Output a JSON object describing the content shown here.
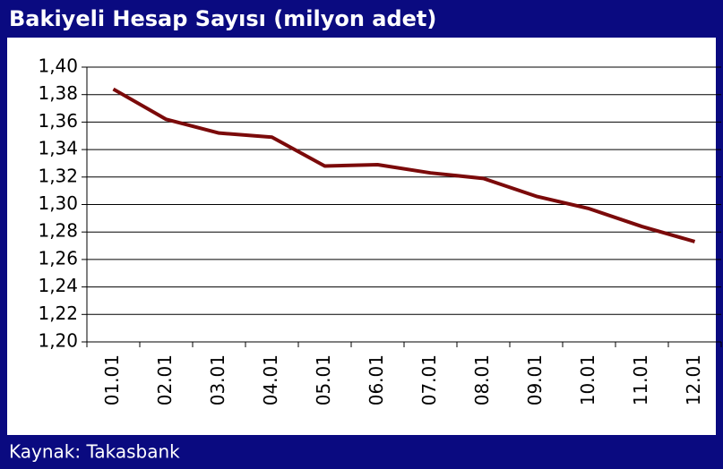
{
  "chart_data": {
    "type": "line",
    "title": "Bakiyeli Hesap Sayısı (milyon adet)",
    "source": "Kaynak: Takasbank",
    "categories": [
      "01.01",
      "02.01",
      "03.01",
      "04.01",
      "05.01",
      "06.01",
      "07.01",
      "08.01",
      "09.01",
      "10.01",
      "11.01",
      "12.01"
    ],
    "series": [
      {
        "name": "Bakiyeli Hesap Sayısı",
        "color": "#7b0a0a",
        "values": [
          1.384,
          1.362,
          1.352,
          1.349,
          1.328,
          1.329,
          1.323,
          1.319,
          1.306,
          1.297,
          1.284,
          1.273
        ]
      }
    ],
    "ylim": [
      1.2,
      1.4
    ],
    "yticks": [
      {
        "value": 1.2,
        "label": "1,20"
      },
      {
        "value": 1.22,
        "label": "1,22"
      },
      {
        "value": 1.24,
        "label": "1,24"
      },
      {
        "value": 1.26,
        "label": "1,26"
      },
      {
        "value": 1.28,
        "label": "1,28"
      },
      {
        "value": 1.3,
        "label": "1,30"
      },
      {
        "value": 1.32,
        "label": "1,32"
      },
      {
        "value": 1.34,
        "label": "1,34"
      },
      {
        "value": 1.36,
        "label": "1,36"
      },
      {
        "value": 1.38,
        "label": "1,38"
      },
      {
        "value": 1.4,
        "label": "1,40"
      }
    ],
    "grid": true
  }
}
